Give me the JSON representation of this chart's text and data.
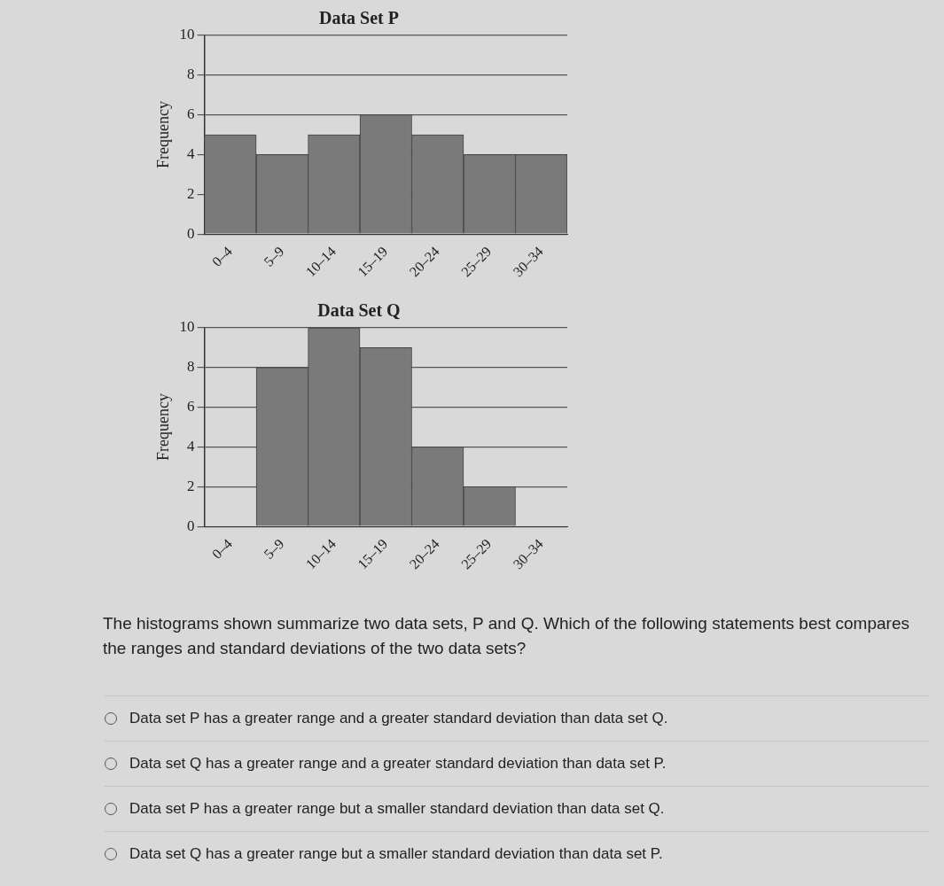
{
  "chart_data": [
    {
      "type": "bar",
      "title": "Data Set P",
      "ylabel": "Frequency",
      "categories": [
        "0–4",
        "5–9",
        "10–14",
        "15–19",
        "20–24",
        "25–29",
        "30–34"
      ],
      "values": [
        5,
        4,
        5,
        6,
        5,
        4,
        4
      ],
      "color": "#7a7a7a",
      "ylim": [
        0,
        10
      ],
      "yticks": [
        0,
        2,
        4,
        6,
        8,
        10
      ],
      "grid": "y"
    },
    {
      "type": "bar",
      "title": "Data Set Q",
      "ylabel": "Frequency",
      "categories": [
        "0–4",
        "5–9",
        "10–14",
        "15–19",
        "20–24",
        "25–29",
        "30–34"
      ],
      "values": [
        0,
        8,
        10,
        9,
        4,
        2,
        0
      ],
      "color": "#7a7a7a",
      "ylim": [
        0,
        10
      ],
      "yticks": [
        0,
        2,
        4,
        6,
        8,
        10
      ],
      "grid": "y",
      "annotations": [
        "The histograms shown summarize two data sets, P and Q. Which of the following statements best compares the ranges and standard deviations of the two data sets?",
        "Data set P has a greater range and a greater standard deviation than data set Q.",
        "Data set Q has a greater range and a greater standard deviation than data set P.",
        "Data set P has a greater range but a smaller standard deviation than data set Q.",
        "Data set Q has a greater range but a smaller standard deviation than data set P."
      ]
    }
  ]
}
